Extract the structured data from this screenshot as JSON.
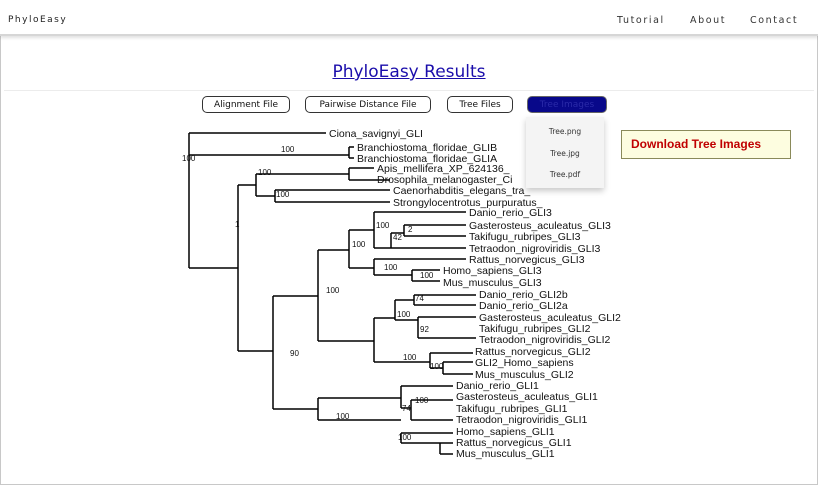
{
  "header": {
    "brand": "PhyloEasy",
    "nav": [
      "Tutorial",
      "About",
      "Contact"
    ]
  },
  "page_title": "PhyloEasy Results",
  "buttons": [
    {
      "label": "Alignment File"
    },
    {
      "label": "Pairwise Distance File"
    },
    {
      "label": "Tree Files"
    },
    {
      "label": "Tree Images",
      "active": true
    }
  ],
  "dropdown": {
    "items": [
      "Tree.png",
      "Tree.jpg",
      "Tree.pdf"
    ]
  },
  "callout": "Download Tree Images",
  "colors": {
    "link": "#1a0dab",
    "active_button": "#08088a",
    "callout_text": "#c00000",
    "callout_bg": "#fdfde0"
  },
  "tree": {
    "leaves": [
      "Ciona_savignyi_GLI",
      "Branchiostoma_floridae_GLIB",
      "Branchiostoma_floridae_GLIA",
      "Apis_mellifera_XP_624136_",
      "Drosophila_melanogaster_Ci",
      "Caenorhabditis_elegans_tra_",
      "Strongylocentrotus_purpuratus_",
      "Danio_rerio_GLI3",
      "Gasterosteus_aculeatus_GLI3",
      "Takifugu_rubripes_GLI3",
      "Tetraodon_nigroviridis_GLI3",
      "Rattus_norvegicus_GLI3",
      "Homo_sapiens_GLI3",
      "Mus_musculus_GLI3",
      "Danio_rerio_GLI2b",
      "Danio_rerio_GLI2a",
      "Gasterosteus_aculeatus_GLI2",
      "Takifugu_rubripes_GLI2",
      "Tetraodon_nigroviridis_GLI2",
      "Rattus_norvegicus_GLI2",
      "GLI2_Homo_sapiens",
      "Mus_musculus_GLI2",
      "Danio_rerio_GLI1",
      "Gasterosteus_aculeatus_GLI1",
      "Takifugu_rubripes_GLI1",
      "Tetraodon_nigroviridis_GLI1",
      "Homo_sapiens_GLI1",
      "Rattus_norvegicus_GLI1",
      "Mus_musculus_GLI1"
    ],
    "support": [
      "100",
      "100",
      "100",
      "100",
      "1",
      "100",
      "2",
      "42",
      "100",
      "100",
      "100",
      "74",
      "100",
      "92",
      "100",
      "100",
      "90",
      "100",
      "100",
      "74",
      "100",
      "100"
    ]
  }
}
